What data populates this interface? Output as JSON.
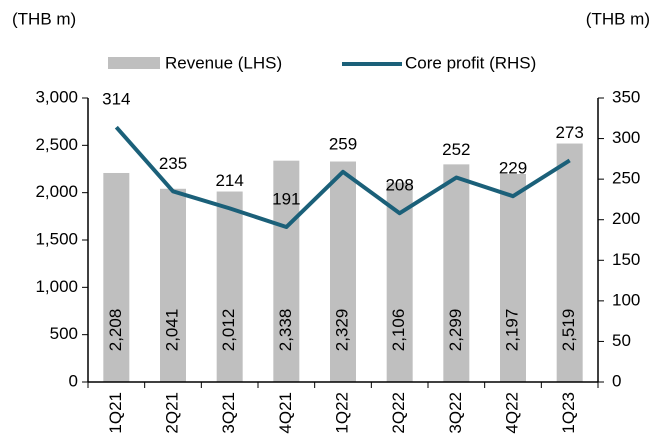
{
  "chart_data": {
    "type": "bar_line",
    "ylabel": "(THB m)",
    "y2label": "(THB m)",
    "categories": [
      "1Q21",
      "2Q21",
      "3Q21",
      "4Q21",
      "1Q22",
      "2Q22",
      "3Q22",
      "4Q22",
      "1Q23"
    ],
    "series": [
      {
        "name": "Revenue (LHS)",
        "type": "bar",
        "color": "#bfbfbf",
        "values": [
          2208,
          2041,
          2012,
          2338,
          2329,
          2106,
          2299,
          2197,
          2519
        ],
        "value_labels": [
          "2,208",
          "2,041",
          "2,012",
          "2,338",
          "2,329",
          "2,106",
          "2,299",
          "2,197",
          "2,519"
        ]
      },
      {
        "name": "Core profit (RHS)",
        "type": "line",
        "axis": "y2",
        "color": "#1b6079",
        "values": [
          314,
          235,
          214,
          191,
          259,
          208,
          252,
          229,
          273
        ]
      }
    ],
    "ylim": [
      0,
      3000
    ],
    "yticks": [
      0,
      {
        "value": 500,
        "label": "500"
      },
      {
        "value": 1000,
        "label": "1,000"
      },
      {
        "value": 1500,
        "label": "1,500"
      },
      {
        "value": 2000,
        "label": "2,000"
      },
      {
        "value": 2500,
        "label": "2,500"
      },
      {
        "value": 3000,
        "label": "3,000"
      }
    ],
    "y2lim": [
      0,
      350
    ],
    "y2ticks": [
      0,
      50,
      100,
      150,
      200,
      250,
      300,
      350
    ],
    "legend": "top",
    "grid": false
  }
}
